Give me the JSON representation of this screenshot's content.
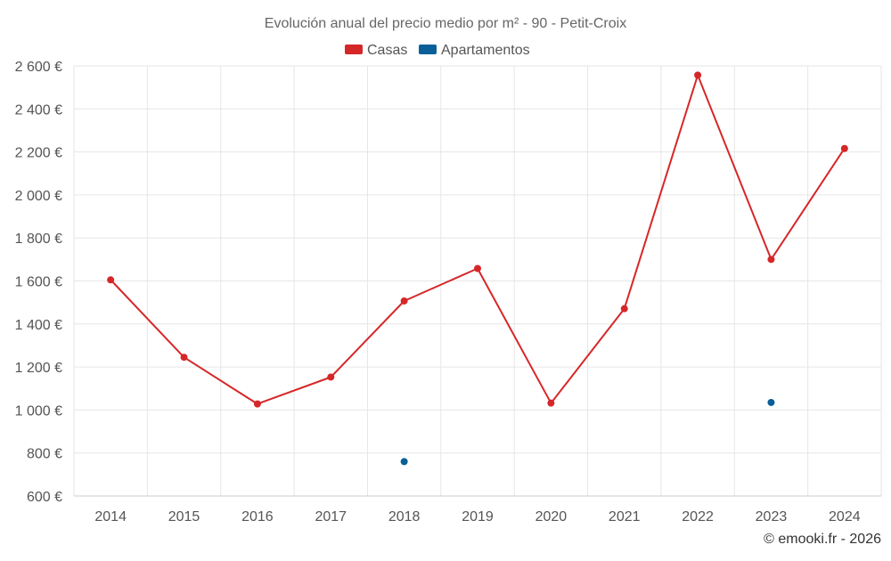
{
  "chart_data": {
    "type": "line",
    "title": "Evolución anual del precio medio por m² - 90 - Petit-Croix",
    "categories": [
      "2014",
      "2015",
      "2016",
      "2017",
      "2018",
      "2019",
      "2020",
      "2021",
      "2022",
      "2023",
      "2024"
    ],
    "series": [
      {
        "name": "Casas",
        "color": "#d62728",
        "values": [
          1605,
          1245,
          1028,
          1153,
          1507,
          1658,
          1032,
          1471,
          2557,
          1700,
          2216
        ]
      },
      {
        "name": "Apartamentos",
        "color": "#0b5f98",
        "values": [
          null,
          null,
          null,
          null,
          760,
          null,
          null,
          null,
          null,
          1035,
          null
        ]
      }
    ],
    "xlabel": "",
    "ylabel": "",
    "ylim": [
      600,
      2600
    ],
    "yticks": [
      600,
      800,
      1000,
      1200,
      1400,
      1600,
      1800,
      2000,
      2200,
      2400,
      2600
    ],
    "ytick_labels": [
      "600 €",
      "800 €",
      "1 000 €",
      "1 200 €",
      "1 400 €",
      "1 600 €",
      "1 800 €",
      "2 000 €",
      "2 200 €",
      "2 400 €",
      "2 600 €"
    ],
    "grid": true,
    "legend_position": "top-center"
  },
  "credit": "© emooki.fr - 2026"
}
